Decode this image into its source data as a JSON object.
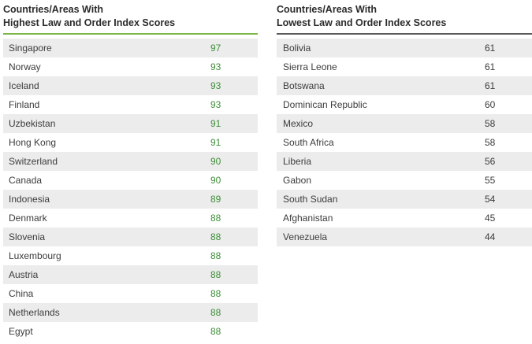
{
  "highest": {
    "title_line1": "Countries/Areas With",
    "title_line2": "Highest Law and Order Index Scores",
    "rows": [
      {
        "name": "Singapore",
        "score": "97"
      },
      {
        "name": "Norway",
        "score": "93"
      },
      {
        "name": "Iceland",
        "score": "93"
      },
      {
        "name": "Finland",
        "score": "93"
      },
      {
        "name": "Uzbekistan",
        "score": "91"
      },
      {
        "name": "Hong Kong",
        "score": "91"
      },
      {
        "name": "Switzerland",
        "score": "90"
      },
      {
        "name": "Canada",
        "score": "90"
      },
      {
        "name": "Indonesia",
        "score": "89"
      },
      {
        "name": "Denmark",
        "score": "88"
      },
      {
        "name": "Slovenia",
        "score": "88"
      },
      {
        "name": "Luxembourg",
        "score": "88"
      },
      {
        "name": "Austria",
        "score": "88"
      },
      {
        "name": "China",
        "score": "88"
      },
      {
        "name": "Netherlands",
        "score": "88"
      },
      {
        "name": "Egypt",
        "score": "88"
      }
    ],
    "accent_color": "#7ab648",
    "score_color": "#3f8f3a"
  },
  "lowest": {
    "title_line1": "Countries/Areas With",
    "title_line2": "Lowest Law and Order Index Scores",
    "rows": [
      {
        "name": "Bolivia",
        "score": "61"
      },
      {
        "name": "Sierra Leone",
        "score": "61"
      },
      {
        "name": "Botswana",
        "score": "61"
      },
      {
        "name": "Dominican Republic",
        "score": "60"
      },
      {
        "name": "Mexico",
        "score": "58"
      },
      {
        "name": "South Africa",
        "score": "58"
      },
      {
        "name": "Liberia",
        "score": "56"
      },
      {
        "name": "Gabon",
        "score": "55"
      },
      {
        "name": "South Sudan",
        "score": "54"
      },
      {
        "name": "Afghanistan",
        "score": "45"
      },
      {
        "name": "Venezuela",
        "score": "44"
      }
    ],
    "accent_color": "#5a5a5a"
  }
}
